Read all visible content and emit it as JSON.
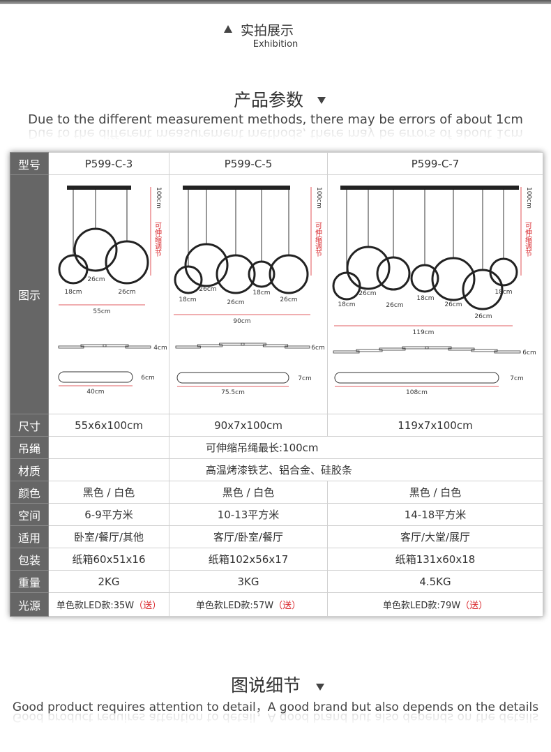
{
  "top": {
    "section": "实拍展示",
    "subtitle": "Exhibition"
  },
  "params": {
    "title": "产品参数",
    "subtitle": "Due to the different measurement methods, there may be errors of about 1cm"
  },
  "table": {
    "header": [
      "型号",
      "P599-C-3",
      "P599-C-5",
      "P599-C-7"
    ],
    "diagram_label": "图示",
    "diagrams": [
      {
        "height": "100cm",
        "adjust": "可伸缩调节",
        "rings": [
          "18cm",
          "26cm",
          "26cm"
        ],
        "width": "55cm",
        "side": "4cm",
        "disc_height": "6cm",
        "disc_width": "40cm"
      },
      {
        "height": "100cm",
        "adjust": "可伸缩调节",
        "rings": [
          "18cm",
          "26cm",
          "26cm",
          "18cm",
          "26cm"
        ],
        "width": "90cm",
        "side": "6cm",
        "disc_height": "7cm",
        "disc_width": "75.5cm"
      },
      {
        "height": "100cm",
        "adjust": "可伸缩调节",
        "rings": [
          "18cm",
          "26cm",
          "26cm",
          "18cm",
          "26cm",
          "26cm",
          "18cm"
        ],
        "width": "119cm",
        "side": "6cm",
        "disc_height": "7cm",
        "disc_width": "108cm"
      }
    ],
    "rows": [
      {
        "label": "尺寸",
        "cells": [
          "55x6x100cm",
          "90x7x100cm",
          "119x7x100cm"
        ]
      },
      {
        "label": "吊绳",
        "cells": [
          "可伸缩吊绳最长:100cm"
        ]
      },
      {
        "label": "材质",
        "cells": [
          "高温烤漆铁艺、铝合金、硅胶条"
        ]
      },
      {
        "label": "颜色",
        "cells": [
          "黑色 / 白色",
          "黑色 / 白色",
          "黑色 / 白色"
        ]
      },
      {
        "label": "空间",
        "cells": [
          "6-9平方米",
          "10-13平方米",
          "14-18平方米"
        ]
      },
      {
        "label": "适用",
        "cells": [
          "卧室/餐厅/其他",
          "客厅/卧室/餐厅",
          "客厅/大堂/展厅"
        ]
      },
      {
        "label": "包装",
        "cells": [
          "纸箱60x51x16",
          "纸箱102x56x17",
          "纸箱131x60x18"
        ]
      },
      {
        "label": "重量",
        "cells": [
          "2KG",
          "3KG",
          "4.5KG"
        ]
      },
      {
        "label": "光源",
        "cells": [
          {
            "text": "单色款LED款:35W",
            "note": "（送）"
          },
          {
            "text": "单色款LED款:57W",
            "note": "（送）"
          },
          {
            "text": "单色款LED款:79W",
            "note": "（送）"
          }
        ]
      }
    ]
  },
  "details": {
    "title": "图说细节",
    "subtitle": "Good product requires attention to detail，A good brand but also depends on the details"
  }
}
